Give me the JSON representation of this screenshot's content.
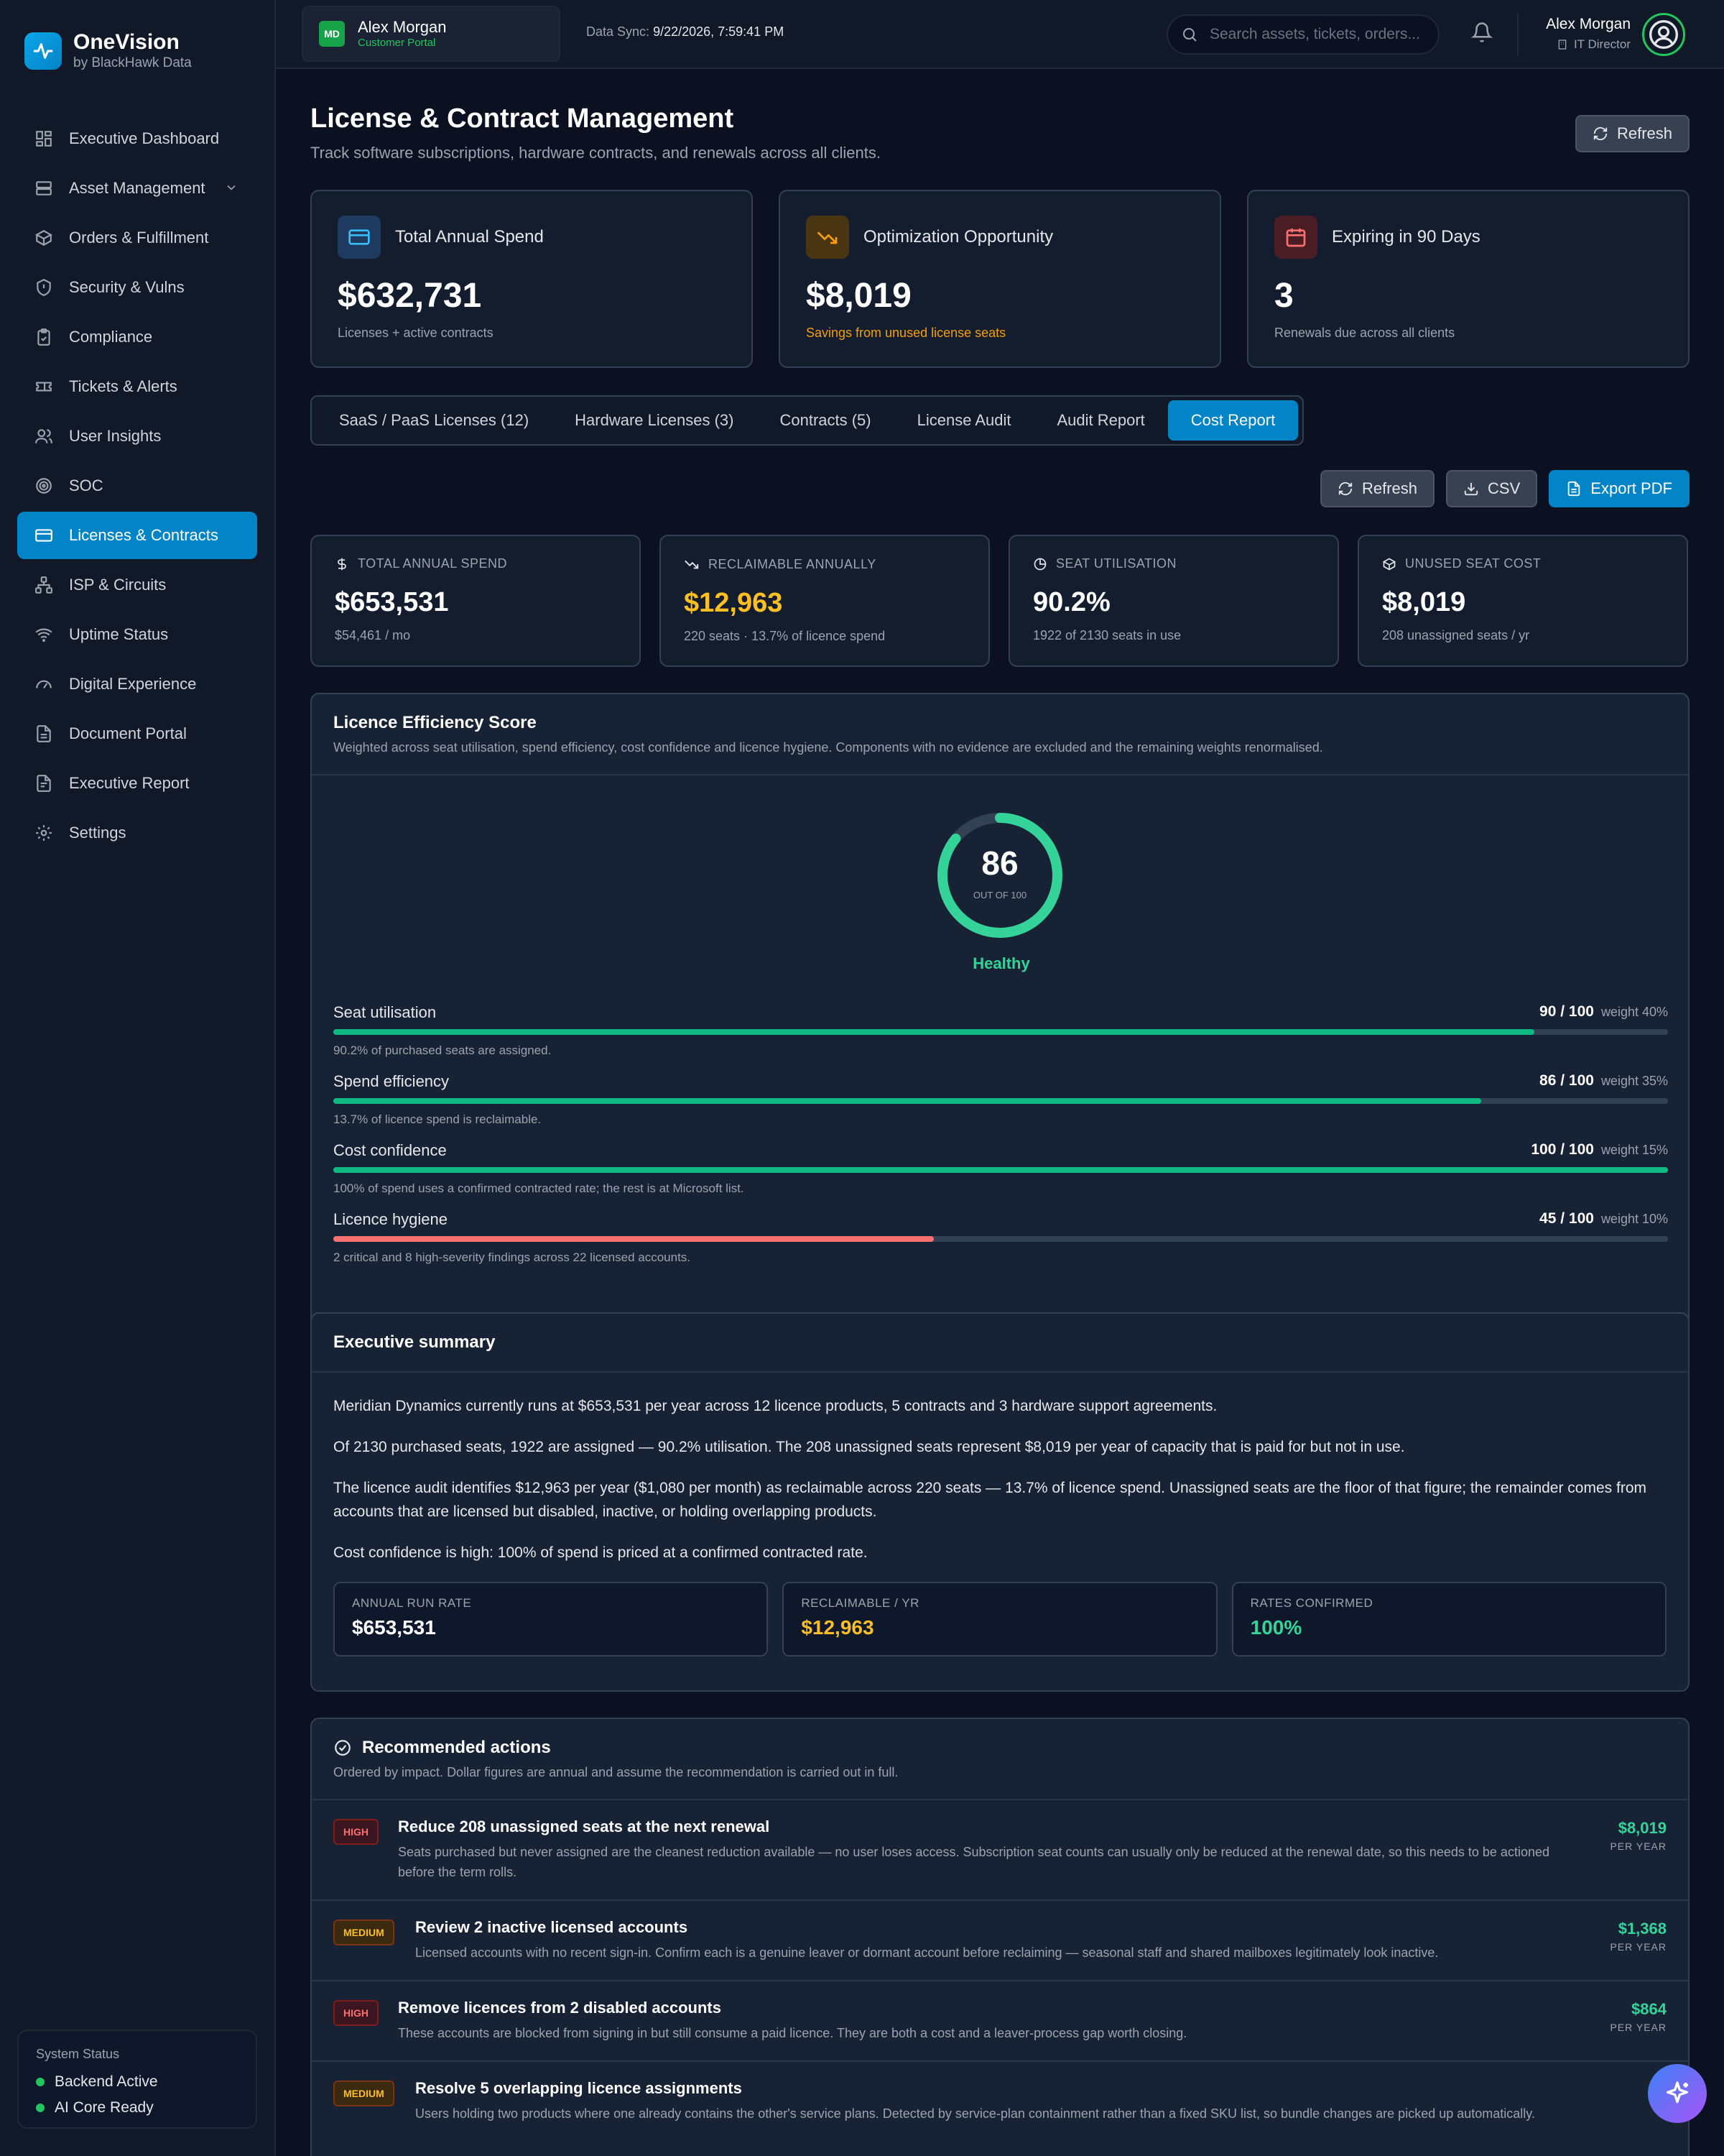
{
  "brand": {
    "name": "OneVision",
    "sub": "by BlackHawk Data"
  },
  "sidebar": {
    "items": [
      {
        "label": "Executive Dashboard",
        "icon": "dashboard-icon"
      },
      {
        "label": "Asset Management",
        "icon": "server-icon"
      },
      {
        "label": "Orders & Fulfillment",
        "icon": "package-icon"
      },
      {
        "label": "Security & Vulns",
        "icon": "shield-icon"
      },
      {
        "label": "Compliance",
        "icon": "clipboard-icon"
      },
      {
        "label": "Tickets & Alerts",
        "icon": "ticket-icon"
      },
      {
        "label": "User Insights",
        "icon": "users-icon"
      },
      {
        "label": "SOC",
        "icon": "radar-icon"
      },
      {
        "label": "Licenses & Contracts",
        "icon": "card-icon"
      },
      {
        "label": "ISP & Circuits",
        "icon": "network-icon"
      },
      {
        "label": "Uptime Status",
        "icon": "wifi-icon"
      },
      {
        "label": "Digital Experience",
        "icon": "gauge-icon"
      },
      {
        "label": "Document Portal",
        "icon": "document-icon"
      },
      {
        "label": "Executive Report",
        "icon": "report-icon"
      },
      {
        "label": "Settings",
        "icon": "gear-icon"
      }
    ]
  },
  "system_status": {
    "title": "System Status",
    "backend": "Backend Active",
    "ai": "AI Core Ready"
  },
  "topbar": {
    "portal_initials": "MD",
    "portal_name": "Alex Morgan",
    "portal_sub": "Customer Portal",
    "sync_label": "Data Sync:",
    "sync_value": "9/22/2026, 7:59:41 PM",
    "search_placeholder": "Search assets, tickets, orders...",
    "user_name": "Alex Morgan",
    "user_role": "IT Director"
  },
  "page": {
    "title": "License & Contract Management",
    "subtitle": "Track software subscriptions, hardware contracts, and renewals across all clients.",
    "refresh_label": "Refresh"
  },
  "kpis": [
    {
      "label": "Total Annual Spend",
      "value": "$632,731",
      "note": "Licenses + active contracts",
      "accent": "#38bdf8"
    },
    {
      "label": "Optimization Opportunity",
      "value": "$8,019",
      "note": "Savings from unused license seats",
      "accent": "#f59e0b"
    },
    {
      "label": "Expiring in 90 Days",
      "value": "3",
      "note": "Renewals due across all clients",
      "accent": "#f87171"
    }
  ],
  "tabs": [
    "SaaS / PaaS Licenses (12)",
    "Hardware Licenses (3)",
    "Contracts (5)",
    "License Audit",
    "Audit Report",
    "Cost Report"
  ],
  "actions": {
    "refresh": "Refresh",
    "csv": "CSV",
    "pdf": "Export PDF"
  },
  "stats": [
    {
      "label": "TOTAL ANNUAL SPEND",
      "value": "$653,531",
      "note": "$54,461 / mo",
      "color": "#ffffff"
    },
    {
      "label": "RECLAIMABLE ANNUALLY",
      "value": "$12,963",
      "note": "220 seats · 13.7% of licence spend",
      "color": "#fbbf24"
    },
    {
      "label": "SEAT UTILISATION",
      "value": "90.2%",
      "note": "1922 of 2130 seats in use",
      "color": "#ffffff"
    },
    {
      "label": "UNUSED SEAT COST",
      "value": "$8,019",
      "note": "208 unassigned seats / yr",
      "color": "#ffffff"
    }
  ],
  "efficiency": {
    "title": "Licence Efficiency Score",
    "subtitle": "Weighted across seat utilisation, spend efficiency, cost confidence and licence hygiene. Components with no evidence are excluded and the remaining weights renormalised.",
    "score": "86",
    "score_value": 86,
    "out_of": "OUT OF 100",
    "status": "Healthy",
    "metrics": [
      {
        "label": "Seat utilisation",
        "score": "90 / 100",
        "value": 90,
        "weight": "weight 40%",
        "note": "90.2% of purchased seats are assigned.",
        "color": "#10b981"
      },
      {
        "label": "Spend efficiency",
        "score": "86 / 100",
        "value": 86,
        "weight": "weight 35%",
        "note": "13.7% of licence spend is reclaimable.",
        "color": "#10b981"
      },
      {
        "label": "Cost confidence",
        "score": "100 / 100",
        "value": 100,
        "weight": "weight 15%",
        "note": "100% of spend uses a confirmed contracted rate; the rest is at Microsoft list.",
        "color": "#10b981"
      },
      {
        "label": "Licence hygiene",
        "score": "45 / 100",
        "value": 45,
        "weight": "weight 10%",
        "note": "2 critical and 8 high-severity findings across 22 licensed accounts.",
        "color": "#f87171"
      }
    ]
  },
  "executive": {
    "title": "Executive summary",
    "paragraphs": [
      "Meridian Dynamics currently runs at $653,531 per year across 12 licence products, 5 contracts and 3 hardware support agreements.",
      "Of 2130 purchased seats, 1922 are assigned — 90.2% utilisation. The 208 unassigned seats represent $8,019 per year of capacity that is paid for but not in use.",
      "The licence audit identifies $12,963 per year ($1,080 per month) as reclaimable across 220 seats — 13.7% of licence spend. Unassigned seats are the floor of that figure; the remainder comes from accounts that are licensed but disabled, inactive, or holding overlapping products.",
      "Cost confidence is high: 100% of spend is priced at a confirmed contracted rate."
    ],
    "boxes": [
      {
        "label": "ANNUAL RUN RATE",
        "value": "$653,531",
        "color": "#ffffff"
      },
      {
        "label": "RECLAIMABLE / YR",
        "value": "$12,963",
        "color": "#fbbf24"
      },
      {
        "label": "RATES CONFIRMED",
        "value": "100%",
        "color": "#34d399"
      }
    ]
  },
  "recommendations": {
    "title": "Recommended actions",
    "subtitle": "Ordered by impact. Dollar figures are annual and assume the recommendation is carried out in full.",
    "per_year": "PER YEAR",
    "items": [
      {
        "severity": "HIGH",
        "title": "Reduce 208 unassigned seats at the next renewal",
        "desc": "Seats purchased but never assigned are the cleanest reduction available — no user loses access. Subscription seat counts can usually only be reduced at the renewal date, so this needs to be actioned before the term rolls.",
        "amount": "$8,019"
      },
      {
        "severity": "MEDIUM",
        "title": "Review 2 inactive licensed accounts",
        "desc": "Licensed accounts with no recent sign-in. Confirm each is a genuine leaver or dormant account before reclaiming — seasonal staff and shared mailboxes legitimately look inactive.",
        "amount": "$1,368"
      },
      {
        "severity": "HIGH",
        "title": "Remove licences from 2 disabled accounts",
        "desc": "These accounts are blocked from signing in but still consume a paid licence. They are both a cost and a leaver-process gap worth closing.",
        "amount": "$864"
      },
      {
        "severity": "MEDIUM",
        "title": "Resolve 5 overlapping licence assignments",
        "desc": "Users holding two products where one already contains the other's service plans. Detected by service-plan containment rather than a fixed SKU list, so bundle changes are picked up automatically.",
        "amount": ""
      }
    ]
  }
}
